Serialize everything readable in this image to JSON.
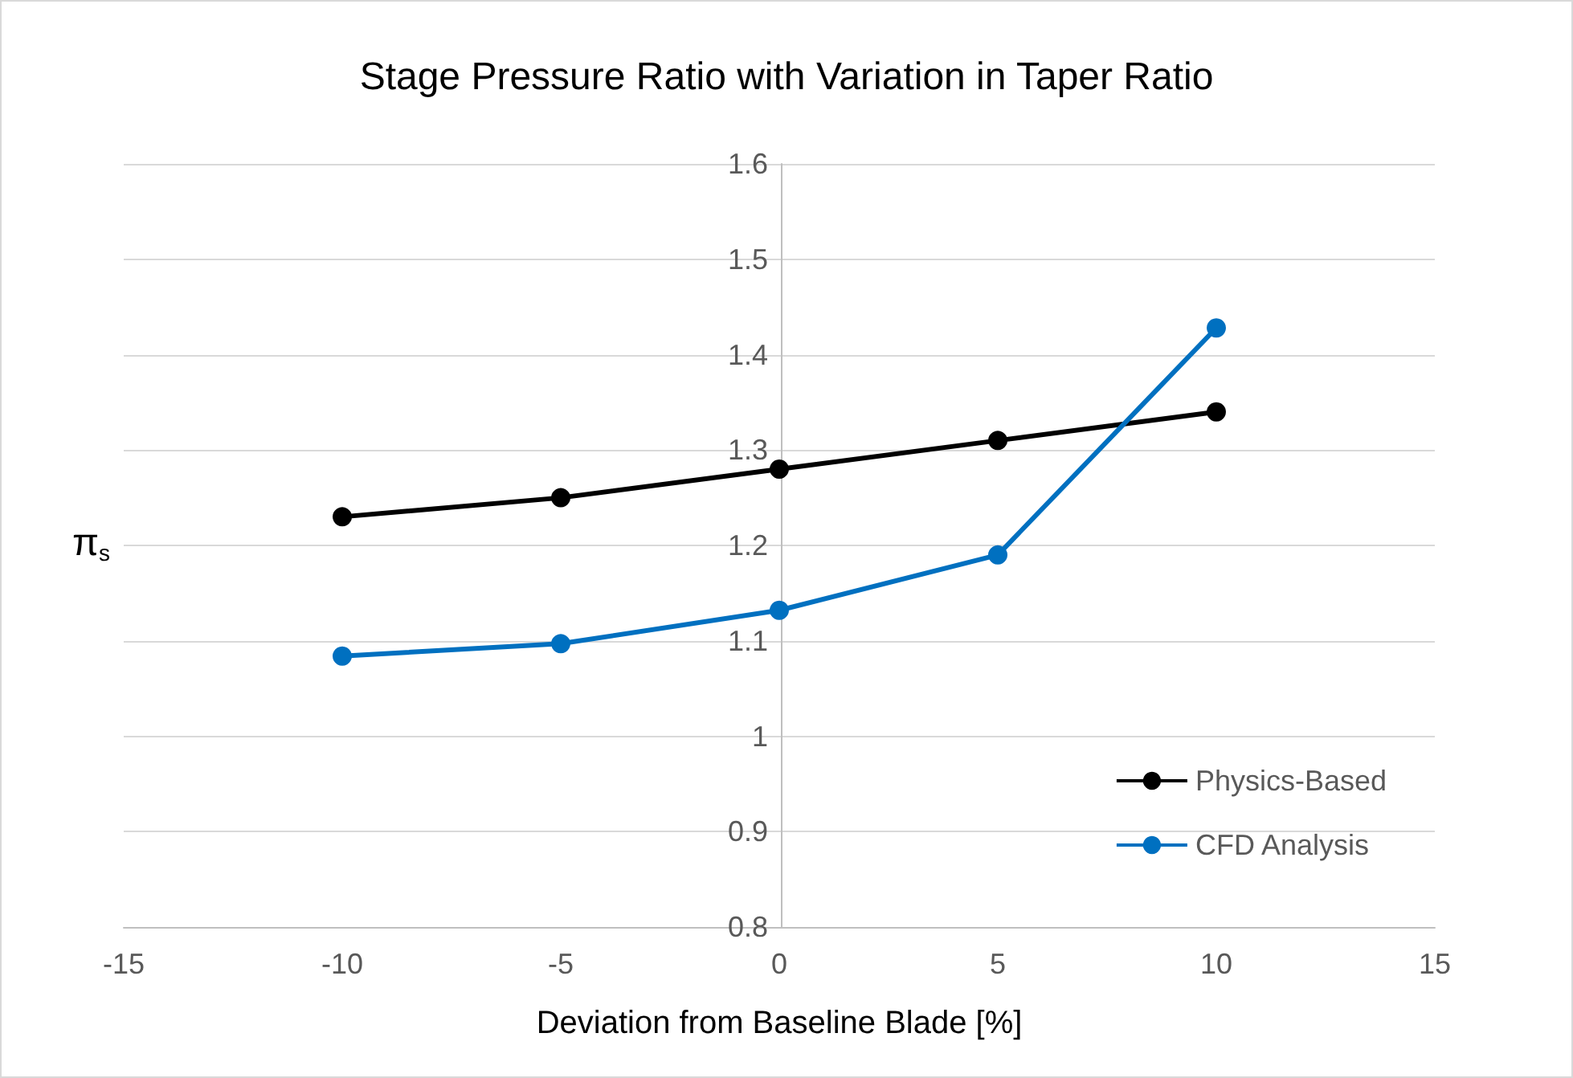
{
  "chart_data": {
    "type": "line",
    "title": "Stage Pressure Ratio with Variation in Taper Ratio",
    "xlabel": "Deviation from Baseline Blade [%]",
    "ylabel": "π$_{s}$",
    "x": [
      -10,
      -5,
      0,
      5,
      10
    ],
    "series": [
      {
        "name": "Physics-Based",
        "color": "#000000",
        "values": [
          1.23,
          1.25,
          1.28,
          1.31,
          1.34
        ]
      },
      {
        "name": "CFD Analysis",
        "color": "#0070c0",
        "values": [
          1.084,
          1.097,
          1.132,
          1.19,
          1.428
        ]
      }
    ],
    "xlim": [
      -15,
      15
    ],
    "xticks": [
      -15,
      -10,
      -5,
      0,
      5,
      10,
      15
    ],
    "ylim": [
      0.8,
      1.6
    ],
    "yticks": [
      0.8,
      0.9,
      1,
      1.1,
      1.2,
      1.3,
      1.4,
      1.5,
      1.6
    ],
    "grid": "y",
    "legend": "bottom right",
    "marker": "circle",
    "line_style": "solid"
  }
}
